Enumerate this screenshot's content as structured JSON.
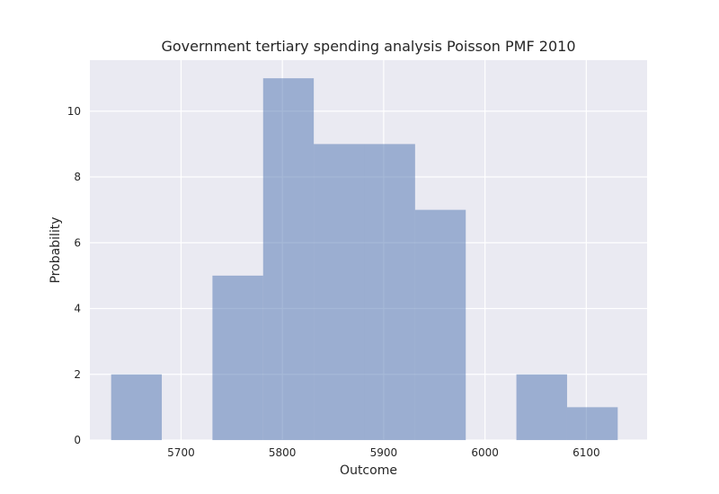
{
  "chart_data": {
    "type": "bar",
    "title": "Government tertiary spending analysis Poisson PMF 2010",
    "xlabel": "Outcome",
    "ylabel": "Probability",
    "xlim": [
      5610,
      6160
    ],
    "ylim": [
      0,
      11.55
    ],
    "xticks": [
      5700,
      5800,
      5900,
      6000,
      6100
    ],
    "yticks": [
      0,
      2,
      4,
      6,
      8,
      10
    ],
    "grid": true,
    "bins": [
      {
        "x0": 5631,
        "x1": 5681,
        "value": 2
      },
      {
        "x0": 5681,
        "x1": 5731,
        "value": 0
      },
      {
        "x0": 5731,
        "x1": 5781,
        "value": 5
      },
      {
        "x0": 5781,
        "x1": 5831,
        "value": 11
      },
      {
        "x0": 5831,
        "x1": 5881,
        "value": 9
      },
      {
        "x0": 5881,
        "x1": 5931,
        "value": 9
      },
      {
        "x0": 5931,
        "x1": 5981,
        "value": 7
      },
      {
        "x0": 5981,
        "x1": 6031,
        "value": 0
      },
      {
        "x0": 6031,
        "x1": 6081,
        "value": 2
      },
      {
        "x0": 6081,
        "x1": 6131,
        "value": 1
      }
    ]
  },
  "colors": {
    "plot_background": "#EAEAF2",
    "grid": "#FFFFFF",
    "bar_fill": "#4C72B0",
    "bar_opacity": 0.5
  }
}
